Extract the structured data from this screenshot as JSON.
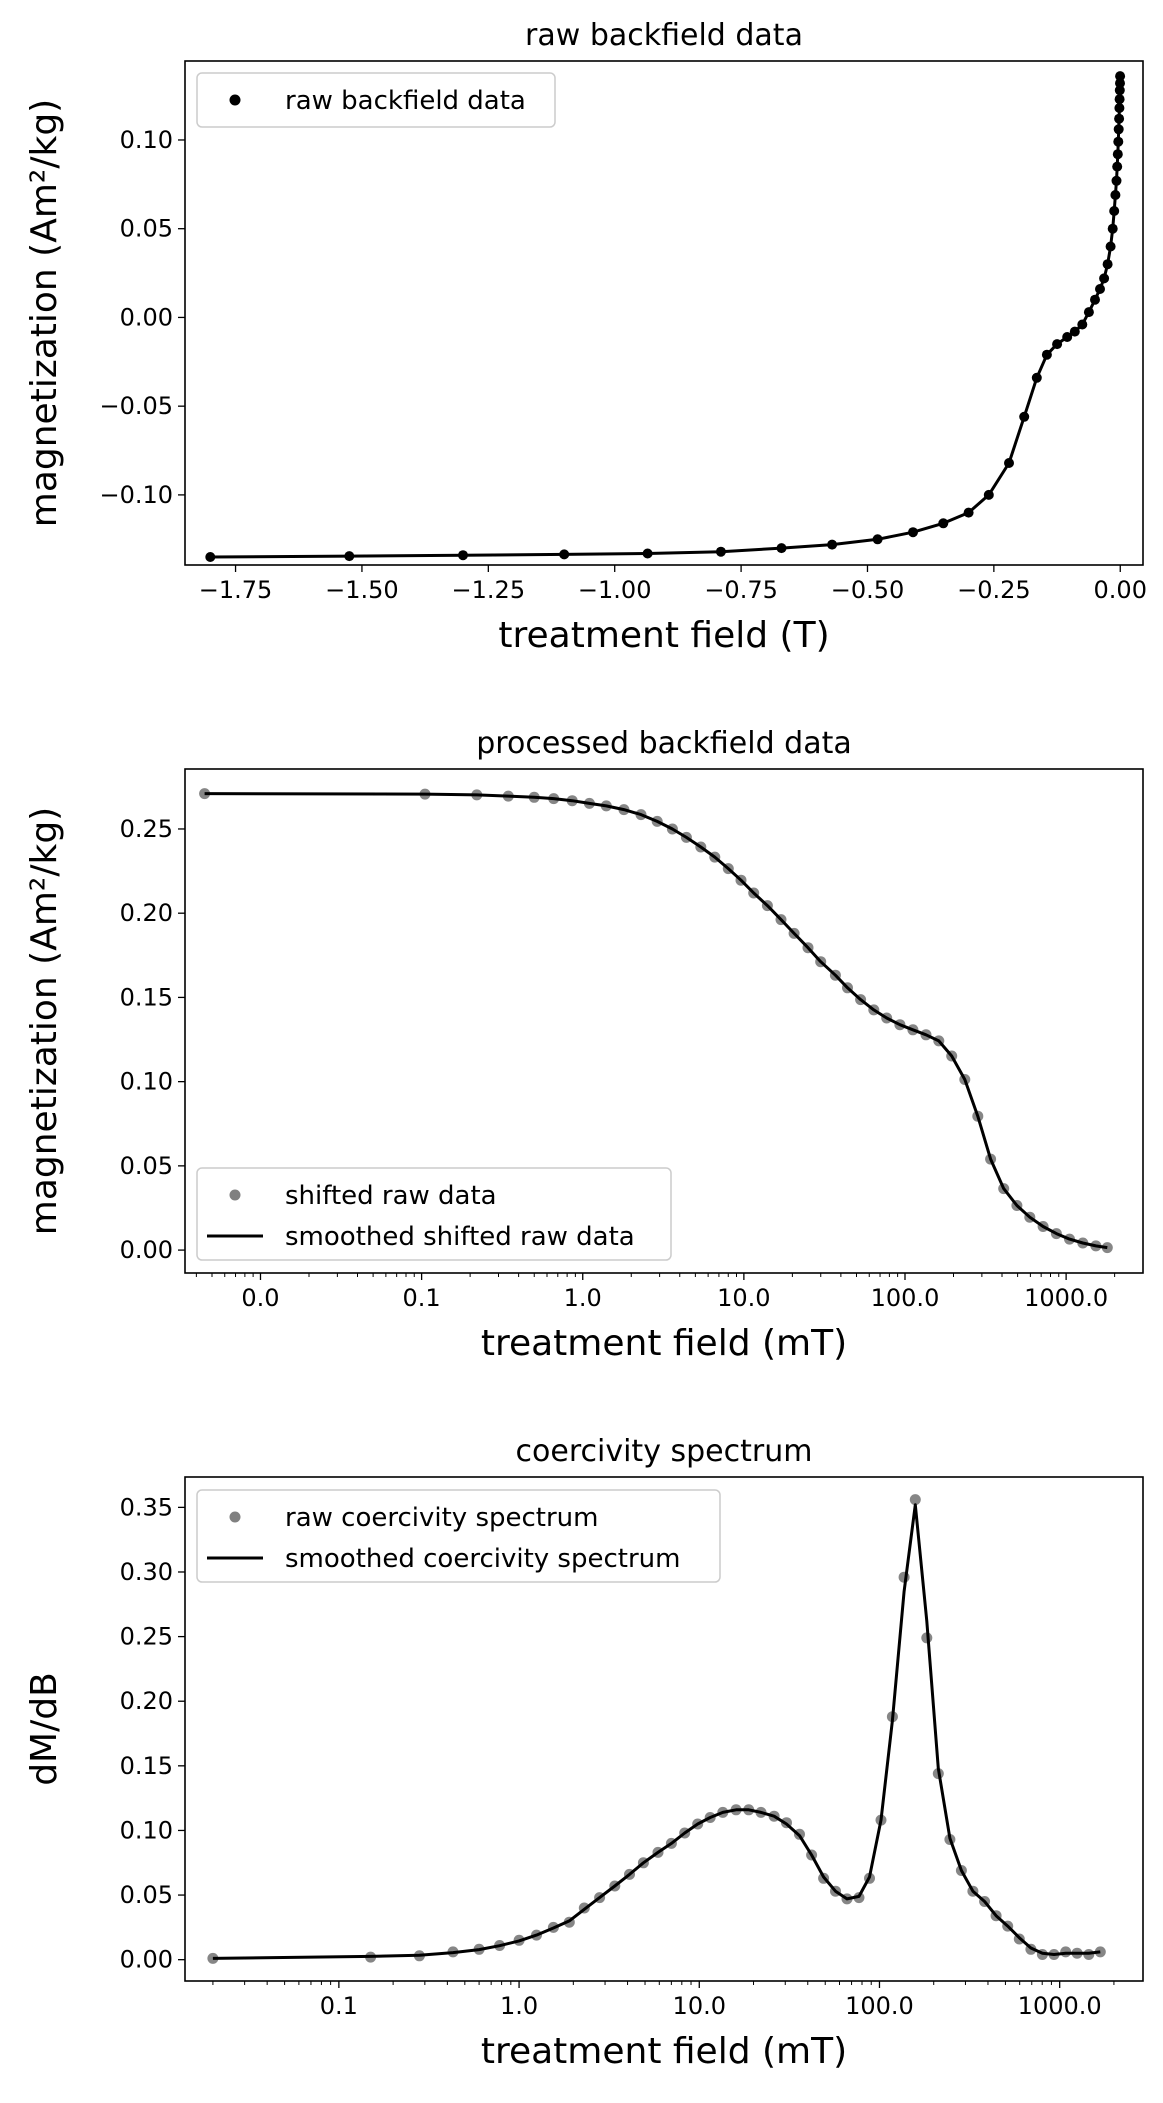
{
  "chart_data": [
    {
      "type": "scatter",
      "title": "raw backfield data",
      "xlabel": "treatment field (T)",
      "ylabel": "magnetization (Am²/kg)",
      "xlim": [
        -1.85,
        0.045
      ],
      "ylim": [
        -0.1395,
        0.1445
      ],
      "xscale": "linear",
      "xticks": [
        {
          "v": -1.75,
          "label": "−1.75"
        },
        {
          "v": -1.5,
          "label": "−1.50"
        },
        {
          "v": -1.25,
          "label": "−1.25"
        },
        {
          "v": -1.0,
          "label": "−1.00"
        },
        {
          "v": -0.75,
          "label": "−0.75"
        },
        {
          "v": -0.5,
          "label": "−0.50"
        },
        {
          "v": -0.25,
          "label": "−0.25"
        },
        {
          "v": 0.0,
          "label": "0.00"
        }
      ],
      "yticks": [
        {
          "v": -0.1,
          "label": "−0.10"
        },
        {
          "v": -0.05,
          "label": "−0.05"
        },
        {
          "v": 0.0,
          "label": "0.00"
        },
        {
          "v": 0.05,
          "label": "0.05"
        },
        {
          "v": 0.1,
          "label": "0.10"
        }
      ],
      "grid": false,
      "legend": {
        "position": "top-left",
        "entries": [
          {
            "label": "raw backfield data",
            "kind": "dot",
            "color": "#000000"
          }
        ]
      },
      "series": [
        {
          "name": "raw backfield data",
          "color": "#000000",
          "markers": true,
          "line": true,
          "x": [
            -1.8,
            -1.525,
            -1.3,
            -1.1,
            -0.935,
            -0.79,
            -0.67,
            -0.57,
            -0.48,
            -0.41,
            -0.35,
            -0.3,
            -0.26,
            -0.22,
            -0.19,
            -0.165,
            -0.145,
            -0.125,
            -0.105,
            -0.09,
            -0.075,
            -0.062,
            -0.05,
            -0.04,
            -0.032,
            -0.025,
            -0.019,
            -0.015,
            -0.012,
            -0.0095,
            -0.0075,
            -0.006,
            -0.0048,
            -0.0038,
            -0.003,
            -0.0023,
            -0.0017,
            -0.0012,
            -0.0008,
            -0.0005,
            -0.0002
          ],
          "y": [
            -0.135,
            -0.1345,
            -0.134,
            -0.1335,
            -0.133,
            -0.132,
            -0.13,
            -0.128,
            -0.125,
            -0.121,
            -0.116,
            -0.11,
            -0.1,
            -0.082,
            -0.056,
            -0.034,
            -0.021,
            -0.015,
            -0.011,
            -0.008,
            -0.004,
            0.003,
            0.01,
            0.016,
            0.022,
            0.03,
            0.04,
            0.05,
            0.06,
            0.069,
            0.077,
            0.085,
            0.092,
            0.099,
            0.106,
            0.112,
            0.118,
            0.123,
            0.128,
            0.132,
            0.136
          ]
        }
      ]
    },
    {
      "type": "line",
      "title": "processed backfield data",
      "xlabel": "treatment field (mT)",
      "ylabel": "magnetization (Am²/kg)",
      "xlim": [
        0.0034,
        3000
      ],
      "ylim": [
        -0.0136,
        0.2856
      ],
      "xscale": "log",
      "xticks": [
        {
          "v": 0.01,
          "label": "0.0"
        },
        {
          "v": 0.1,
          "label": "0.1"
        },
        {
          "v": 1,
          "label": "1.0"
        },
        {
          "v": 10,
          "label": "10.0"
        },
        {
          "v": 100,
          "label": "100.0"
        },
        {
          "v": 1000,
          "label": "1000.0"
        }
      ],
      "yticks": [
        {
          "v": 0.0,
          "label": "0.00"
        },
        {
          "v": 0.05,
          "label": "0.05"
        },
        {
          "v": 0.1,
          "label": "0.10"
        },
        {
          "v": 0.15,
          "label": "0.15"
        },
        {
          "v": 0.2,
          "label": "0.20"
        },
        {
          "v": 0.25,
          "label": "0.25"
        }
      ],
      "grid": false,
      "legend": {
        "position": "bottom-left",
        "entries": [
          {
            "label": "shifted raw data",
            "kind": "dot",
            "color": "#808080"
          },
          {
            "label": "smoothed shifted raw data",
            "kind": "line",
            "color": "#000000"
          }
        ]
      },
      "series": [
        {
          "name": "shifted raw data",
          "color": "#808080",
          "markers": true,
          "line": false,
          "x": [
            0.0045,
            0.105,
            0.22,
            0.345,
            0.5,
            0.66,
            0.86,
            1.1,
            1.4,
            1.8,
            2.3,
            2.9,
            3.6,
            4.4,
            5.4,
            6.6,
            8.0,
            9.6,
            11.5,
            14.0,
            17.0,
            20.5,
            25.0,
            30.0,
            37.0,
            44.0,
            53.0,
            64.0,
            77.0,
            93.0,
            112.0,
            135.0,
            162.0,
            195.0,
            235.0,
            283.0,
            340.0,
            410.0,
            495.0,
            595.0,
            720.0,
            870.0,
            1050.0,
            1270.0,
            1530.0,
            1800.0
          ],
          "y": [
            0.271,
            0.2707,
            0.2702,
            0.2695,
            0.2688,
            0.268,
            0.2668,
            0.2652,
            0.2637,
            0.2615,
            0.2585,
            0.2545,
            0.25,
            0.245,
            0.2393,
            0.2333,
            0.2265,
            0.2196,
            0.212,
            0.2045,
            0.1962,
            0.188,
            0.1795,
            0.1712,
            0.1632,
            0.1557,
            0.1487,
            0.1426,
            0.1378,
            0.1338,
            0.1308,
            0.1278,
            0.1242,
            0.1152,
            0.1013,
            0.0795,
            0.054,
            0.0365,
            0.0265,
            0.0195,
            0.014,
            0.0098,
            0.0065,
            0.0042,
            0.0025,
            0.0015
          ]
        },
        {
          "name": "smoothed shifted raw data",
          "color": "#000000",
          "markers": false,
          "line": true,
          "x": [
            0.0045,
            0.105,
            0.22,
            0.345,
            0.5,
            0.66,
            0.86,
            1.1,
            1.4,
            1.8,
            2.3,
            2.9,
            3.6,
            4.4,
            5.4,
            6.6,
            8.0,
            9.6,
            11.5,
            14.0,
            17.0,
            20.5,
            25.0,
            30.0,
            37.0,
            44.0,
            53.0,
            64.0,
            77.0,
            93.0,
            112.0,
            135.0,
            162.0,
            195.0,
            235.0,
            283.0,
            340.0,
            410.0,
            495.0,
            595.0,
            720.0,
            870.0,
            1050.0,
            1270.0,
            1530.0,
            1800.0
          ],
          "y": [
            0.271,
            0.2707,
            0.2702,
            0.2695,
            0.2688,
            0.268,
            0.2668,
            0.2652,
            0.2637,
            0.2615,
            0.2585,
            0.2545,
            0.25,
            0.245,
            0.2393,
            0.2333,
            0.2265,
            0.2196,
            0.212,
            0.2045,
            0.1962,
            0.188,
            0.1795,
            0.1712,
            0.1632,
            0.1557,
            0.1487,
            0.1426,
            0.1378,
            0.1338,
            0.1308,
            0.1278,
            0.1242,
            0.1152,
            0.1013,
            0.0795,
            0.054,
            0.0365,
            0.0265,
            0.0195,
            0.014,
            0.0098,
            0.0065,
            0.0042,
            0.0025,
            0.0015
          ]
        }
      ]
    },
    {
      "type": "line",
      "title": "coercivity spectrum",
      "xlabel": "treatment field (mT)",
      "ylabel": "dM/dB",
      "xlim": [
        0.014,
        2900
      ],
      "ylim": [
        -0.0165,
        0.3735
      ],
      "xscale": "log",
      "xticks": [
        {
          "v": 0.1,
          "label": "0.1"
        },
        {
          "v": 1,
          "label": "1.0"
        },
        {
          "v": 10,
          "label": "10.0"
        },
        {
          "v": 100,
          "label": "100.0"
        },
        {
          "v": 1000,
          "label": "1000.0"
        }
      ],
      "yticks": [
        {
          "v": 0.0,
          "label": "0.00"
        },
        {
          "v": 0.05,
          "label": "0.05"
        },
        {
          "v": 0.1,
          "label": "0.10"
        },
        {
          "v": 0.15,
          "label": "0.15"
        },
        {
          "v": 0.2,
          "label": "0.20"
        },
        {
          "v": 0.25,
          "label": "0.25"
        },
        {
          "v": 0.3,
          "label": "0.30"
        },
        {
          "v": 0.35,
          "label": "0.35"
        }
      ],
      "grid": false,
      "legend": {
        "position": "top-left",
        "entries": [
          {
            "label": "raw coercivity spectrum",
            "kind": "dot",
            "color": "#808080"
          },
          {
            "label": "smoothed coercivity spectrum",
            "kind": "line",
            "color": "#000000"
          }
        ]
      },
      "series": [
        {
          "name": "raw coercivity spectrum",
          "color": "#808080",
          "markers": true,
          "line": false,
          "x": [
            0.02,
            0.15,
            0.28,
            0.43,
            0.6,
            0.78,
            1.0,
            1.25,
            1.55,
            1.9,
            2.3,
            2.8,
            3.4,
            4.1,
            4.9,
            5.9,
            7.0,
            8.3,
            9.8,
            11.5,
            13.5,
            16.0,
            18.8,
            22.0,
            26.0,
            30.5,
            36.0,
            42.0,
            49.0,
            57.0,
            66.0,
            77.0,
            88.0,
            102.0,
            118.0,
            137.0,
            158.0,
            183.0,
            212.0,
            246.0,
            285.0,
            330.0,
            383.0,
            444.0,
            515.0,
            597.0,
            692.0,
            802.0,
            930.0,
            1080.0,
            1250.0,
            1450.0,
            1680.0
          ],
          "y": [
            0.001,
            0.002,
            0.003,
            0.006,
            0.008,
            0.011,
            0.015,
            0.019,
            0.025,
            0.029,
            0.04,
            0.048,
            0.057,
            0.066,
            0.075,
            0.083,
            0.09,
            0.098,
            0.105,
            0.11,
            0.114,
            0.116,
            0.116,
            0.114,
            0.111,
            0.106,
            0.097,
            0.081,
            0.063,
            0.053,
            0.047,
            0.048,
            0.063,
            0.108,
            0.188,
            0.296,
            0.356,
            0.249,
            0.144,
            0.093,
            0.069,
            0.053,
            0.045,
            0.034,
            0.026,
            0.016,
            0.008,
            0.004,
            0.004,
            0.006,
            0.005,
            0.004,
            0.006
          ]
        },
        {
          "name": "smoothed coercivity spectrum",
          "color": "#000000",
          "markers": false,
          "line": true,
          "x": [
            0.02,
            0.15,
            0.28,
            0.43,
            0.6,
            0.78,
            1.0,
            1.25,
            1.55,
            1.9,
            2.3,
            2.8,
            3.4,
            4.1,
            4.9,
            5.9,
            7.0,
            8.3,
            9.8,
            11.5,
            13.5,
            16.0,
            18.8,
            22.0,
            26.0,
            30.5,
            36.0,
            42.0,
            49.0,
            57.0,
            66.0,
            77.0,
            88.0,
            102.0,
            118.0,
            137.0,
            158.0,
            183.0,
            212.0,
            246.0,
            285.0,
            330.0,
            383.0,
            444.0,
            515.0,
            597.0,
            692.0,
            802.0,
            930.0,
            1080.0,
            1250.0,
            1450.0,
            1680.0
          ],
          "y": [
            0.001,
            0.0025,
            0.0035,
            0.0055,
            0.0078,
            0.0108,
            0.0145,
            0.019,
            0.0245,
            0.03,
            0.039,
            0.048,
            0.057,
            0.066,
            0.075,
            0.083,
            0.09,
            0.098,
            0.105,
            0.11,
            0.114,
            0.116,
            0.116,
            0.114,
            0.111,
            0.105,
            0.096,
            0.081,
            0.064,
            0.053,
            0.047,
            0.049,
            0.064,
            0.108,
            0.185,
            0.285,
            0.352,
            0.262,
            0.148,
            0.094,
            0.069,
            0.053,
            0.045,
            0.034,
            0.026,
            0.017,
            0.009,
            0.005,
            0.004,
            0.005,
            0.005,
            0.005,
            0.006
          ]
        }
      ]
    }
  ]
}
